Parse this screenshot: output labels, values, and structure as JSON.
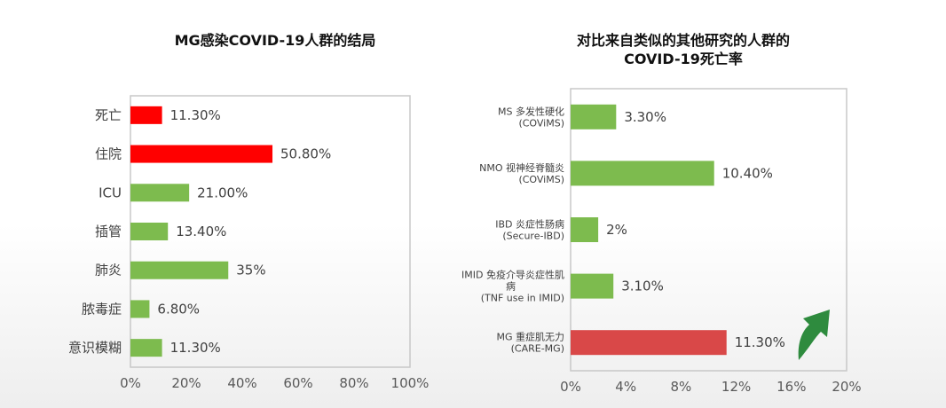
{
  "chart_data": [
    {
      "type": "bar",
      "orientation": "horizontal",
      "title": "MG感染COVID-19人群的结局",
      "categories": [
        "死亡",
        "住院",
        "ICU",
        "插管",
        "肺炎",
        "脓毒症",
        "意识模糊"
      ],
      "values": [
        11.3,
        50.8,
        21.0,
        13.4,
        35,
        6.8,
        11.3
      ],
      "value_labels": [
        "11.30%",
        "50.80%",
        "21.00%",
        "13.40%",
        "35%",
        "6.80%",
        "11.30%"
      ],
      "bar_colors": [
        "#ff0000",
        "#ff0000",
        "#7dbb4e",
        "#7dbb4e",
        "#7dbb4e",
        "#7dbb4e",
        "#7dbb4e"
      ],
      "xlim": [
        0,
        100
      ],
      "xticks": [
        "0%",
        "20%",
        "40%",
        "60%",
        "80%",
        "100%"
      ],
      "grid": false
    },
    {
      "type": "bar",
      "orientation": "horizontal",
      "title": [
        "对比来自类似的其他研究的人群的",
        "COVID-19死亡率"
      ],
      "categories": [
        [
          "MS 多发性硬化",
          "(COViMS)"
        ],
        [
          "NMO 视神经脊髓炎",
          "(COViMS)"
        ],
        [
          "IBD 炎症性肠病",
          "(Secure-IBD)"
        ],
        [
          "IMID 免疫介导炎症性肌",
          "病",
          "(TNF use in IMID)"
        ],
        [
          "MG 重症肌无力",
          "(CARE-MG)"
        ]
      ],
      "values": [
        3.3,
        10.4,
        2,
        3.1,
        11.3
      ],
      "value_labels": [
        "3.30%",
        "10.40%",
        "2%",
        "3.10%",
        "11.30%"
      ],
      "bar_colors": [
        "#7dbb4e",
        "#7dbb4e",
        "#7dbb4e",
        "#7dbb4e",
        "#d94848"
      ],
      "xlim": [
        0,
        20
      ],
      "xticks": [
        "0%",
        "4%",
        "8%",
        "12%",
        "16%",
        "20%"
      ],
      "grid": false,
      "annotation": "up-arrow-icon"
    }
  ],
  "colors": {
    "arrow": "#2e8b3e",
    "axis": "#c8c8c8"
  }
}
